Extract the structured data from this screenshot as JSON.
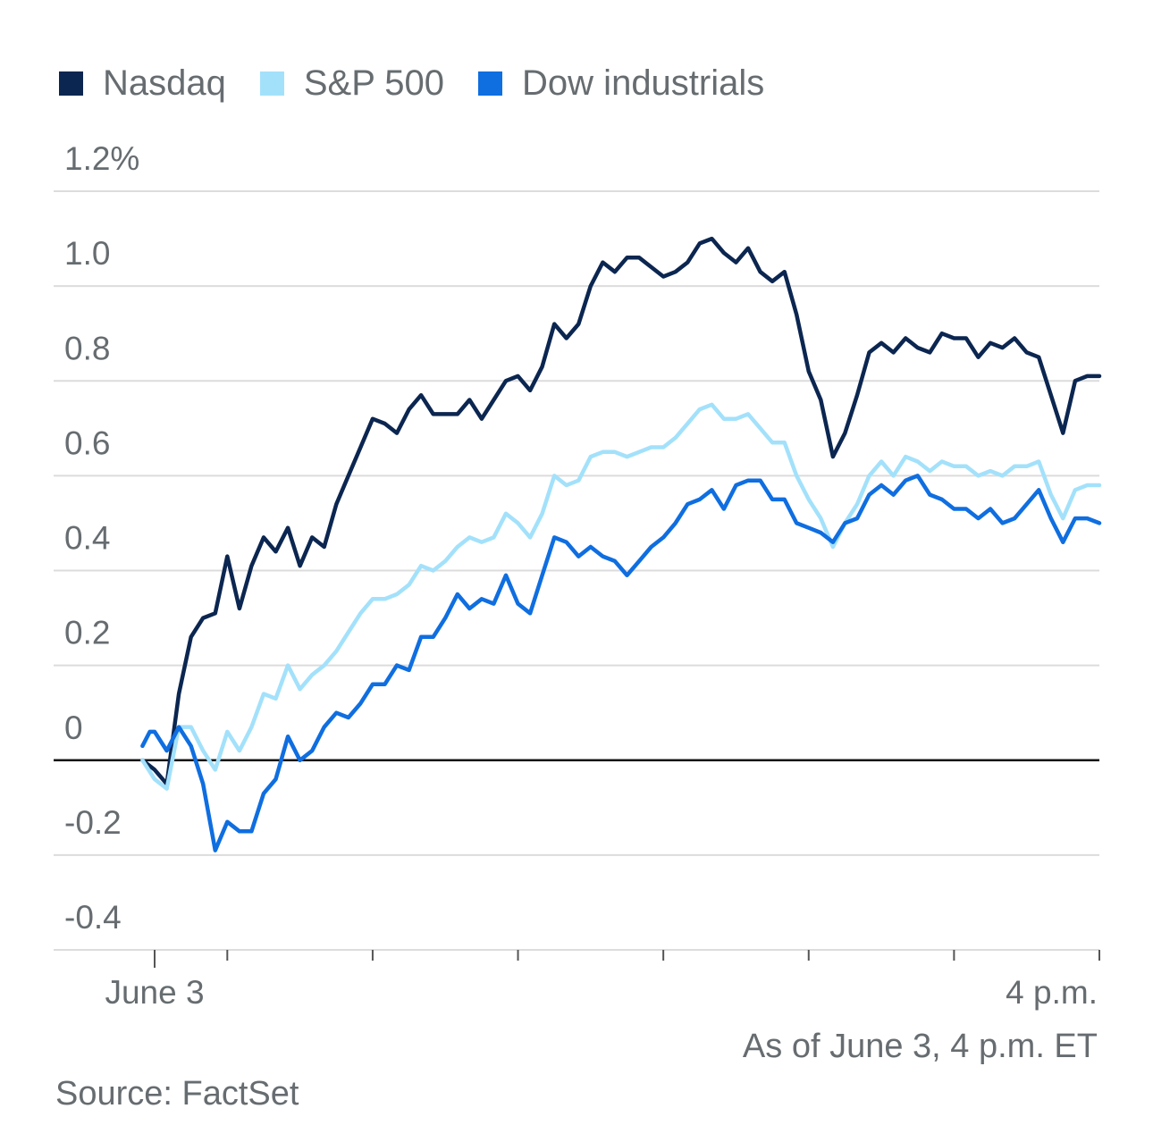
{
  "legend": [
    {
      "label": "Nasdaq",
      "color": "#0b2650"
    },
    {
      "label": "S&P 500",
      "color": "#a3e1fb"
    },
    {
      "label": "Dow industrials",
      "color": "#0f6ee0"
    }
  ],
  "notes": {
    "as_of": "As of June 3, 4 p.m. ET",
    "source": "Source: FactSet"
  },
  "chart_data": {
    "type": "line",
    "title": "",
    "xlabel": "",
    "ylabel": "",
    "ylim": [
      -0.4,
      1.2
    ],
    "y_ticks": [
      {
        "value": 1.2,
        "label": "1.2%"
      },
      {
        "value": 1.0,
        "label": "1.0"
      },
      {
        "value": 0.8,
        "label": "0.8"
      },
      {
        "value": 0.6,
        "label": "0.6"
      },
      {
        "value": 0.4,
        "label": "0.4"
      },
      {
        "value": 0.2,
        "label": "0.2"
      },
      {
        "value": 0,
        "label": "0"
      },
      {
        "value": -0.2,
        "label": "-0.2"
      },
      {
        "value": -0.4,
        "label": "-0.4"
      }
    ],
    "x_ticks": [
      {
        "label": "June 3",
        "minutes": 0
      },
      {
        "label": "",
        "minutes": 30
      },
      {
        "label": "",
        "minutes": 90
      },
      {
        "label": "",
        "minutes": 150
      },
      {
        "label": "",
        "minutes": 210
      },
      {
        "label": "",
        "minutes": 270
      },
      {
        "label": "",
        "minutes": 330
      },
      {
        "label": "4 p.m.",
        "minutes": 390
      }
    ],
    "grid": true,
    "legend_position": "top-left",
    "series": [
      {
        "name": "Nasdaq",
        "color": "#0b2650",
        "points": [
          [
            -5,
            0.0
          ],
          [
            0,
            -0.02
          ],
          [
            5,
            -0.05
          ],
          [
            10,
            0.14
          ],
          [
            15,
            0.26
          ],
          [
            20,
            0.3
          ],
          [
            25,
            0.31
          ],
          [
            30,
            0.43
          ],
          [
            35,
            0.32
          ],
          [
            40,
            0.41
          ],
          [
            45,
            0.47
          ],
          [
            50,
            0.44
          ],
          [
            55,
            0.49
          ],
          [
            60,
            0.41
          ],
          [
            65,
            0.47
          ],
          [
            70,
            0.45
          ],
          [
            75,
            0.54
          ],
          [
            80,
            0.6
          ],
          [
            85,
            0.66
          ],
          [
            90,
            0.72
          ],
          [
            95,
            0.71
          ],
          [
            100,
            0.69
          ],
          [
            105,
            0.74
          ],
          [
            110,
            0.77
          ],
          [
            115,
            0.73
          ],
          [
            120,
            0.73
          ],
          [
            125,
            0.73
          ],
          [
            130,
            0.76
          ],
          [
            135,
            0.72
          ],
          [
            140,
            0.76
          ],
          [
            145,
            0.8
          ],
          [
            150,
            0.81
          ],
          [
            155,
            0.78
          ],
          [
            160,
            0.83
          ],
          [
            165,
            0.92
          ],
          [
            170,
            0.89
          ],
          [
            175,
            0.92
          ],
          [
            180,
            1.0
          ],
          [
            185,
            1.05
          ],
          [
            190,
            1.03
          ],
          [
            195,
            1.06
          ],
          [
            200,
            1.06
          ],
          [
            205,
            1.04
          ],
          [
            210,
            1.02
          ],
          [
            215,
            1.03
          ],
          [
            220,
            1.05
          ],
          [
            225,
            1.09
          ],
          [
            230,
            1.1
          ],
          [
            235,
            1.07
          ],
          [
            240,
            1.05
          ],
          [
            245,
            1.08
          ],
          [
            250,
            1.03
          ],
          [
            255,
            1.01
          ],
          [
            260,
            1.03
          ],
          [
            265,
            0.94
          ],
          [
            270,
            0.82
          ],
          [
            275,
            0.76
          ],
          [
            280,
            0.64
          ],
          [
            285,
            0.69
          ],
          [
            290,
            0.77
          ],
          [
            295,
            0.86
          ],
          [
            300,
            0.88
          ],
          [
            305,
            0.86
          ],
          [
            310,
            0.89
          ],
          [
            315,
            0.87
          ],
          [
            320,
            0.86
          ],
          [
            325,
            0.9
          ],
          [
            330,
            0.89
          ],
          [
            335,
            0.89
          ],
          [
            340,
            0.85
          ],
          [
            345,
            0.88
          ],
          [
            350,
            0.87
          ],
          [
            355,
            0.89
          ],
          [
            360,
            0.86
          ],
          [
            365,
            0.85
          ],
          [
            370,
            0.77
          ],
          [
            375,
            0.69
          ],
          [
            380,
            0.8
          ],
          [
            385,
            0.81
          ],
          [
            390,
            0.81
          ]
        ]
      },
      {
        "name": "S&P 500",
        "color": "#a3e1fb",
        "points": [
          [
            -5,
            0.0
          ],
          [
            0,
            -0.04
          ],
          [
            5,
            -0.06
          ],
          [
            10,
            0.07
          ],
          [
            15,
            0.07
          ],
          [
            20,
            0.02
          ],
          [
            25,
            -0.02
          ],
          [
            30,
            0.06
          ],
          [
            35,
            0.02
          ],
          [
            40,
            0.07
          ],
          [
            45,
            0.14
          ],
          [
            50,
            0.13
          ],
          [
            55,
            0.2
          ],
          [
            60,
            0.15
          ],
          [
            65,
            0.18
          ],
          [
            70,
            0.2
          ],
          [
            75,
            0.23
          ],
          [
            80,
            0.27
          ],
          [
            85,
            0.31
          ],
          [
            90,
            0.34
          ],
          [
            95,
            0.34
          ],
          [
            100,
            0.35
          ],
          [
            105,
            0.37
          ],
          [
            110,
            0.41
          ],
          [
            115,
            0.4
          ],
          [
            120,
            0.42
          ],
          [
            125,
            0.45
          ],
          [
            130,
            0.47
          ],
          [
            135,
            0.46
          ],
          [
            140,
            0.47
          ],
          [
            145,
            0.52
          ],
          [
            150,
            0.5
          ],
          [
            155,
            0.47
          ],
          [
            160,
            0.52
          ],
          [
            165,
            0.6
          ],
          [
            170,
            0.58
          ],
          [
            175,
            0.59
          ],
          [
            180,
            0.64
          ],
          [
            185,
            0.65
          ],
          [
            190,
            0.65
          ],
          [
            195,
            0.64
          ],
          [
            200,
            0.65
          ],
          [
            205,
            0.66
          ],
          [
            210,
            0.66
          ],
          [
            215,
            0.68
          ],
          [
            220,
            0.71
          ],
          [
            225,
            0.74
          ],
          [
            230,
            0.75
          ],
          [
            235,
            0.72
          ],
          [
            240,
            0.72
          ],
          [
            245,
            0.73
          ],
          [
            250,
            0.7
          ],
          [
            255,
            0.67
          ],
          [
            260,
            0.67
          ],
          [
            265,
            0.6
          ],
          [
            270,
            0.55
          ],
          [
            275,
            0.51
          ],
          [
            280,
            0.45
          ],
          [
            285,
            0.5
          ],
          [
            290,
            0.54
          ],
          [
            295,
            0.6
          ],
          [
            300,
            0.63
          ],
          [
            305,
            0.6
          ],
          [
            310,
            0.64
          ],
          [
            315,
            0.63
          ],
          [
            320,
            0.61
          ],
          [
            325,
            0.63
          ],
          [
            330,
            0.62
          ],
          [
            335,
            0.62
          ],
          [
            340,
            0.6
          ],
          [
            345,
            0.61
          ],
          [
            350,
            0.6
          ],
          [
            355,
            0.62
          ],
          [
            360,
            0.62
          ],
          [
            365,
            0.63
          ],
          [
            370,
            0.56
          ],
          [
            375,
            0.51
          ],
          [
            380,
            0.57
          ],
          [
            385,
            0.58
          ],
          [
            390,
            0.58
          ]
        ]
      },
      {
        "name": "Dow industrials",
        "color": "#0f6ee0",
        "points": [
          [
            -5,
            0.03
          ],
          [
            -2,
            0.06
          ],
          [
            0,
            0.06
          ],
          [
            5,
            0.02
          ],
          [
            10,
            0.07
          ],
          [
            15,
            0.03
          ],
          [
            20,
            -0.05
          ],
          [
            25,
            -0.19
          ],
          [
            30,
            -0.13
          ],
          [
            35,
            -0.15
          ],
          [
            40,
            -0.15
          ],
          [
            45,
            -0.07
          ],
          [
            50,
            -0.04
          ],
          [
            55,
            0.05
          ],
          [
            60,
            0.0
          ],
          [
            65,
            0.02
          ],
          [
            70,
            0.07
          ],
          [
            75,
            0.1
          ],
          [
            80,
            0.09
          ],
          [
            85,
            0.12
          ],
          [
            90,
            0.16
          ],
          [
            95,
            0.16
          ],
          [
            100,
            0.2
          ],
          [
            105,
            0.19
          ],
          [
            110,
            0.26
          ],
          [
            115,
            0.26
          ],
          [
            120,
            0.3
          ],
          [
            125,
            0.35
          ],
          [
            130,
            0.32
          ],
          [
            135,
            0.34
          ],
          [
            140,
            0.33
          ],
          [
            145,
            0.39
          ],
          [
            150,
            0.33
          ],
          [
            155,
            0.31
          ],
          [
            160,
            0.39
          ],
          [
            165,
            0.47
          ],
          [
            170,
            0.46
          ],
          [
            175,
            0.43
          ],
          [
            180,
            0.45
          ],
          [
            185,
            0.43
          ],
          [
            190,
            0.42
          ],
          [
            195,
            0.39
          ],
          [
            200,
            0.42
          ],
          [
            205,
            0.45
          ],
          [
            210,
            0.47
          ],
          [
            215,
            0.5
          ],
          [
            220,
            0.54
          ],
          [
            225,
            0.55
          ],
          [
            230,
            0.57
          ],
          [
            235,
            0.53
          ],
          [
            240,
            0.58
          ],
          [
            245,
            0.59
          ],
          [
            250,
            0.59
          ],
          [
            255,
            0.55
          ],
          [
            260,
            0.55
          ],
          [
            265,
            0.5
          ],
          [
            270,
            0.49
          ],
          [
            275,
            0.48
          ],
          [
            280,
            0.46
          ],
          [
            285,
            0.5
          ],
          [
            290,
            0.51
          ],
          [
            295,
            0.56
          ],
          [
            300,
            0.58
          ],
          [
            305,
            0.56
          ],
          [
            310,
            0.59
          ],
          [
            315,
            0.6
          ],
          [
            320,
            0.56
          ],
          [
            325,
            0.55
          ],
          [
            330,
            0.53
          ],
          [
            335,
            0.53
          ],
          [
            340,
            0.51
          ],
          [
            345,
            0.53
          ],
          [
            350,
            0.5
          ],
          [
            355,
            0.51
          ],
          [
            360,
            0.54
          ],
          [
            365,
            0.57
          ],
          [
            370,
            0.51
          ],
          [
            375,
            0.46
          ],
          [
            380,
            0.51
          ],
          [
            385,
            0.51
          ],
          [
            390,
            0.5
          ]
        ]
      }
    ]
  }
}
